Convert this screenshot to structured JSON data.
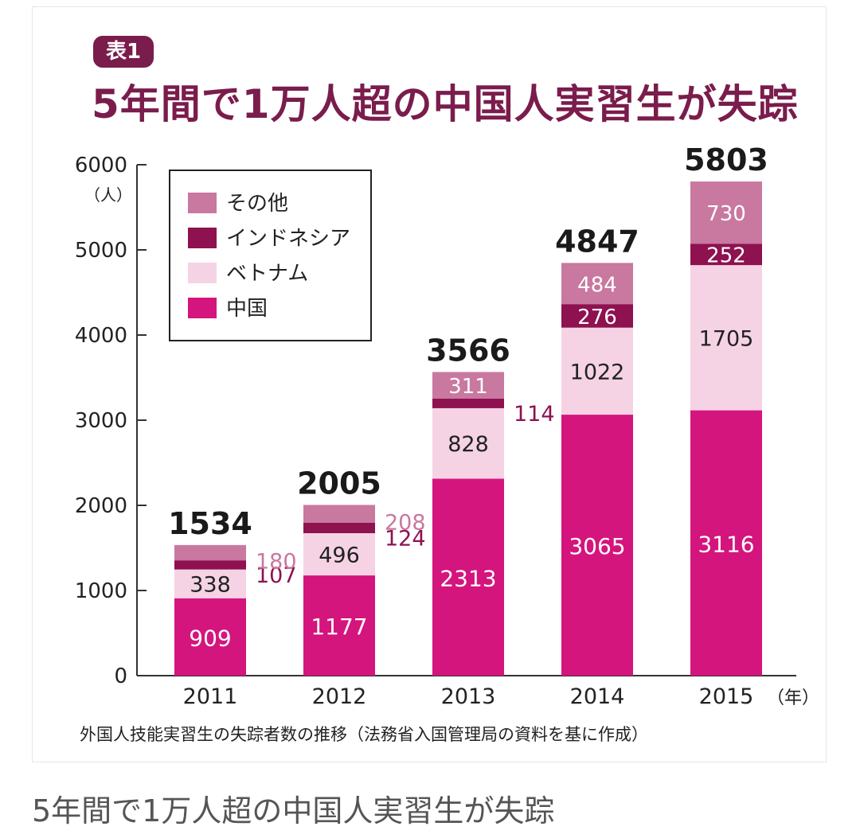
{
  "badge": "表1",
  "headline": "5年間で1万人超の中国人実習生が失踪",
  "caption": "5年間で1万人超の中国人実習生が失踪",
  "colors": {
    "china": "#d4157d",
    "vietnam": "#f5d3e4",
    "indonesia": "#8e1150",
    "other": "#c9789f",
    "headline": "#7a1c4c"
  },
  "chart_data": {
    "type": "bar",
    "stacked": true,
    "title": "5年間で1万人超の中国人実習生が失踪",
    "ylabel": "（人）",
    "xlabel": "（年）",
    "ylim": [
      0,
      6000
    ],
    "yticks": [
      0,
      1000,
      2000,
      3000,
      4000,
      5000,
      6000
    ],
    "categories": [
      "2011",
      "2012",
      "2013",
      "2014",
      "2015"
    ],
    "series": [
      {
        "name": "中国",
        "values": [
          909,
          1177,
          2313,
          3065,
          3116
        ]
      },
      {
        "name": "ベトナム",
        "values": [
          338,
          496,
          828,
          1022,
          1705
        ]
      },
      {
        "name": "インドネシア",
        "values": [
          107,
          124,
          114,
          276,
          252
        ]
      },
      {
        "name": "その他",
        "values": [
          180,
          208,
          311,
          484,
          730
        ]
      }
    ],
    "totals": [
      1534,
      2005,
      3566,
      4847,
      5803
    ],
    "legend": [
      "その他",
      "インドネシア",
      "ベトナム",
      "中国"
    ],
    "legend_placement": "top-left",
    "source": "外国人技能実習生の失踪者数の推移（法務省入国管理局の資料を基に作成）"
  }
}
